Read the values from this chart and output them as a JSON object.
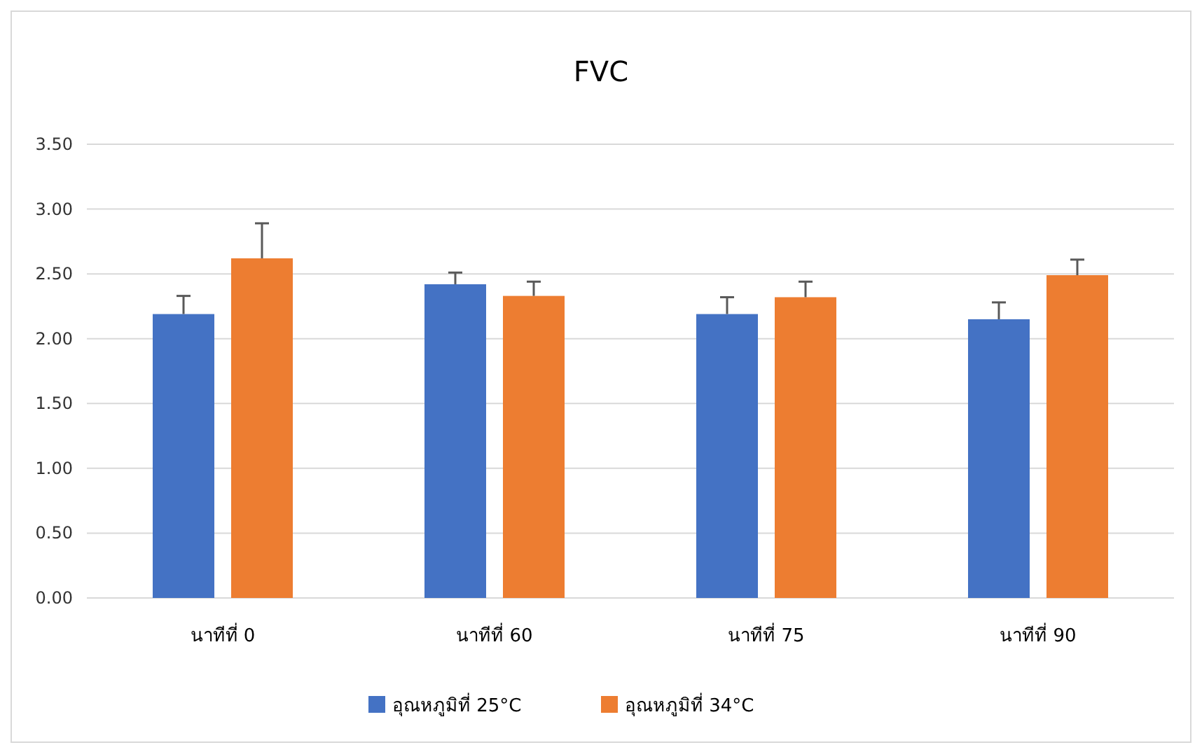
{
  "chart_data": {
    "type": "bar",
    "title": "FVC",
    "categories": [
      "นาทีที่ 0",
      "นาทีที่ 60",
      "นาทีที่ 75",
      "นาทีที่ 90"
    ],
    "series": [
      {
        "name": "อุณหภูมิที่ 25°C",
        "color": "#4472c4",
        "values": [
          2.19,
          2.42,
          2.19,
          2.15
        ],
        "errors": [
          [
            2.19,
            2.33
          ],
          [
            2.42,
            2.51
          ],
          [
            2.19,
            2.32
          ],
          [
            2.15,
            2.28
          ]
        ]
      },
      {
        "name": "อุณหภูมิที่ 34°C",
        "color": "#ed7d31",
        "values": [
          2.62,
          2.33,
          2.32,
          2.49
        ],
        "errors": [
          [
            2.62,
            2.89
          ],
          [
            2.33,
            2.44
          ],
          [
            2.32,
            2.44
          ],
          [
            2.49,
            2.61
          ]
        ]
      }
    ],
    "ylim": [
      0,
      3.5
    ],
    "yticks": [
      {
        "value": 0,
        "label": "0.00"
      },
      {
        "value": 0.5,
        "label": "0.50"
      },
      {
        "value": 1,
        "label": "1.00"
      },
      {
        "value": 1.5,
        "label": "1.50"
      },
      {
        "value": 2,
        "label": "2.00"
      },
      {
        "value": 2.5,
        "label": "2.50"
      },
      {
        "value": 3,
        "label": "3.00"
      },
      {
        "value": 3.5,
        "label": "3.50"
      }
    ],
    "grid": "y",
    "legend": "bottom"
  }
}
